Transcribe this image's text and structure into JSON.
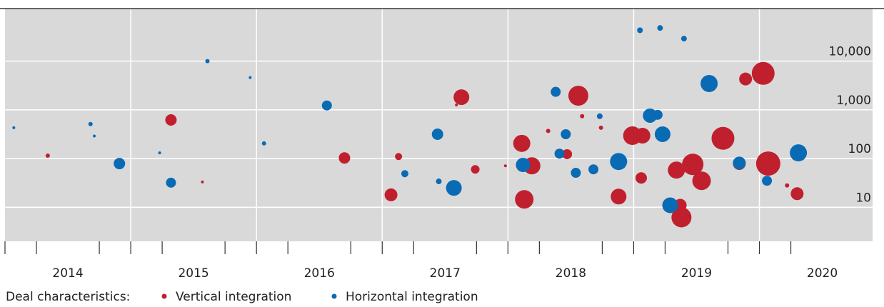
{
  "chart_data": {
    "type": "scatter",
    "legend_title": "Deal characteristics:",
    "log_y": true,
    "xlim": [
      2014.0,
      2020.9
    ],
    "ylim": [
      2,
      120000
    ],
    "xticks": [
      {
        "value": 2014.5,
        "label": "2014"
      },
      {
        "value": 2015.5,
        "label": "2015"
      },
      {
        "value": 2016.5,
        "label": "2016"
      },
      {
        "value": 2017.5,
        "label": "2017"
      },
      {
        "value": 2018.5,
        "label": "2018"
      },
      {
        "value": 2019.5,
        "label": "2019"
      },
      {
        "value": 2020.5,
        "label": "2020"
      }
    ],
    "xgrid": [
      2015,
      2016,
      2017,
      2018,
      2019,
      2020
    ],
    "xminor": [
      2014.0,
      2014.25,
      2014.75,
      2015.0,
      2015.25,
      2015.75,
      2016.0,
      2016.25,
      2016.75,
      2017.0,
      2017.25,
      2017.75,
      2018.0,
      2018.25,
      2018.75,
      2019.0,
      2019.25,
      2019.75,
      2020.0,
      2020.25
    ],
    "yticks": [
      10,
      100,
      {
        "value": 1000,
        "label": "1,000"
      },
      {
        "value": 10000,
        "label": "10,000"
      }
    ],
    "series": [
      {
        "name": "Vertical integration",
        "color": "#c0202e",
        "x": [
          2014.34,
          2015.32,
          2015.57,
          2016.7,
          2017.07,
          2017.13,
          2017.59,
          2017.63,
          2017.74,
          2017.98,
          2018.11,
          2018.19,
          2018.13,
          2018.32,
          2018.47,
          2018.56,
          2018.59,
          2018.74,
          2018.88,
          2018.99,
          2019.07,
          2019.06,
          2019.34,
          2019.37,
          2019.38,
          2019.47,
          2019.54,
          2019.71,
          2019.89,
          2020.03,
          2020.07,
          2020.22,
          2020.3,
          2019.84
        ],
        "values": [
          115,
          620,
          33,
          103,
          18,
          110,
          1260,
          1820,
          60,
          71,
          205,
          71,
          14.5,
          370,
          123,
          1950,
          740,
          430,
          16.6,
          295,
          295,
          40,
          58,
          11,
          6.2,
          76,
          35,
          260,
          4300,
          5600,
          79,
          28,
          19,
          79
        ],
        "sizes": [
          3,
          8,
          2,
          8,
          9,
          5,
          2,
          11,
          6,
          2,
          12,
          12,
          13,
          3,
          7,
          14,
          3,
          3,
          11,
          13,
          11,
          8,
          12,
          9,
          14,
          15,
          13,
          16,
          9,
          16,
          17,
          3,
          9,
          9
        ]
      },
      {
        "name": "Horizontal integration",
        "color": "#0a6bb5",
        "x": [
          2014.07,
          2014.68,
          2014.71,
          2014.91,
          2015.23,
          2015.32,
          2015.61,
          2015.95,
          2016.06,
          2016.56,
          2017.18,
          2017.44,
          2017.45,
          2017.57,
          2018.12,
          2018.38,
          2018.41,
          2018.46,
          2018.54,
          2018.68,
          2018.73,
          2018.88,
          2019.05,
          2019.13,
          2019.19,
          2019.21,
          2019.23,
          2019.29,
          2019.4,
          2019.6,
          2019.84,
          2020.06,
          2020.31
        ],
        "values": [
          430,
          510,
          290,
          79,
          131,
          32,
          10000,
          4600,
          205,
          1230,
          49,
          316,
          34,
          25,
          74,
          2340,
          126,
          316,
          51,
          60,
          740,
          87,
          43000,
          760,
          790,
          48000,
          316,
          11,
          29000,
          3470,
          81,
          35,
          131
        ],
        "sizes": [
          2,
          3,
          2,
          8,
          2,
          7,
          3,
          2,
          3,
          7,
          5,
          8,
          4,
          11,
          10,
          7,
          7,
          7,
          7,
          7,
          4,
          12,
          4,
          10,
          7,
          4,
          11,
          11,
          4,
          12,
          9,
          7,
          12
        ]
      }
    ]
  }
}
